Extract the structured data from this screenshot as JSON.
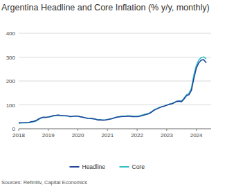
{
  "chart_data": {
    "type": "line",
    "title": "Argentina Headline and Core Inflation (% y/y, monthly)",
    "source": "Sources: Refinitiv, Capital Economics",
    "x": [
      2018,
      2018.083,
      2018.167,
      2018.25,
      2018.333,
      2018.417,
      2018.5,
      2018.583,
      2018.667,
      2018.75,
      2018.833,
      2018.917,
      2019,
      2019.083,
      2019.167,
      2019.25,
      2019.333,
      2019.417,
      2019.5,
      2019.583,
      2019.667,
      2019.75,
      2019.833,
      2019.917,
      2020,
      2020.083,
      2020.167,
      2020.25,
      2020.333,
      2020.417,
      2020.5,
      2020.583,
      2020.667,
      2020.75,
      2020.833,
      2020.917,
      2021,
      2021.083,
      2021.167,
      2021.25,
      2021.333,
      2021.417,
      2021.5,
      2021.583,
      2021.667,
      2021.75,
      2021.833,
      2021.917,
      2022,
      2022.083,
      2022.167,
      2022.25,
      2022.333,
      2022.417,
      2022.5,
      2022.583,
      2022.667,
      2022.75,
      2022.833,
      2022.917,
      2023,
      2023.083,
      2023.167,
      2023.25,
      2023.333,
      2023.417,
      2023.5,
      2023.583,
      2023.667,
      2023.75,
      2023.833,
      2023.917,
      2024,
      2024.083,
      2024.167,
      2024.25,
      2024.333
    ],
    "series": [
      {
        "name": "Headline",
        "color": "#23479b",
        "values": [
          25,
          25.4,
          25.4,
          25.5,
          26.3,
          29.5,
          31.2,
          34.4,
          40.5,
          45.9,
          48.5,
          47.6,
          49.3,
          51.3,
          54.7,
          55.8,
          57.3,
          55.8,
          54.4,
          54.5,
          53.5,
          50.5,
          52.1,
          53.8,
          52.9,
          50.3,
          48.4,
          45.6,
          43.4,
          42.8,
          42.4,
          40.7,
          36.6,
          37.2,
          35.8,
          36.1,
          38.5,
          40.7,
          42.6,
          46.3,
          48.8,
          50.2,
          51.8,
          51.4,
          52.5,
          52.1,
          51.2,
          50.9,
          50.7,
          52.3,
          55.1,
          58,
          60.7,
          64,
          71,
          78.5,
          83,
          88,
          92.4,
          94.8,
          98.8,
          102.5,
          104.3,
          108.8,
          114.2,
          115.6,
          113.4,
          124.4,
          138.3,
          142.7,
          160.9,
          211.4,
          254.2,
          276.2,
          287.9,
          289.4,
          276.4
        ]
      },
      {
        "name": "Core",
        "color": "#35bfc9",
        "values": [
          23.5,
          24,
          24.5,
          25,
          25.5,
          27,
          29,
          32,
          38,
          44,
          48,
          48,
          49,
          51,
          54,
          55.5,
          57,
          56,
          55,
          54,
          53,
          51,
          52,
          53,
          52,
          50,
          48,
          46,
          44,
          43,
          42,
          41,
          38,
          38,
          37,
          37,
          39,
          41,
          43,
          47,
          50,
          51.5,
          53,
          53,
          54,
          54,
          53,
          53,
          53,
          54,
          57,
          60,
          63,
          66,
          73,
          80,
          85,
          89,
          92,
          95,
          99,
          103,
          106,
          110,
          115,
          117,
          116,
          128,
          142,
          148,
          170,
          227,
          265,
          288,
          298,
          301,
          292
        ]
      }
    ],
    "xlim": [
      2018,
      2024.5
    ],
    "xticks": [
      2018,
      2019,
      2020,
      2021,
      2022,
      2023,
      2024
    ],
    "ylim": [
      0,
      400
    ],
    "yticks": [
      0,
      100,
      200,
      300,
      400
    ],
    "grid": true,
    "legend": "bottom"
  }
}
